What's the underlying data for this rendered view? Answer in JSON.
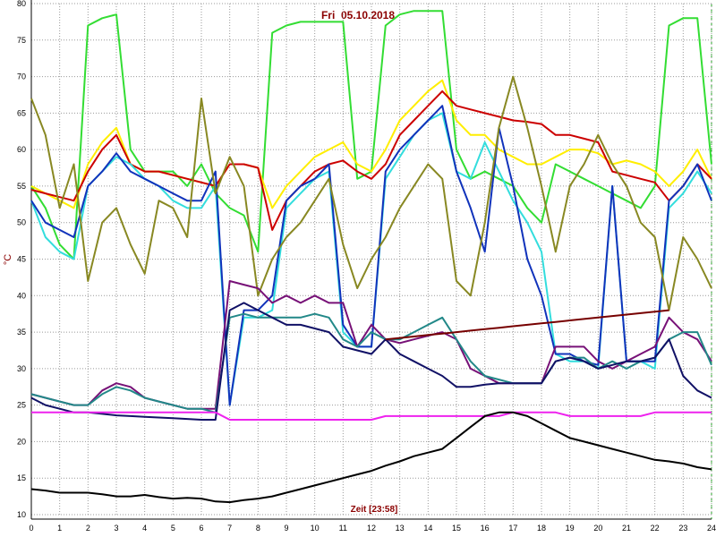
{
  "chart_data": {
    "type": "line",
    "title": "Fri  05.10.2018",
    "x_label": "Zeit [23:58]",
    "y_label": "°C",
    "x": [
      0,
      0.5,
      1,
      1.5,
      2,
      2.5,
      3,
      3.5,
      4,
      4.5,
      5,
      5.5,
      6,
      6.5,
      7,
      7.5,
      8,
      8.5,
      9,
      9.5,
      10,
      10.5,
      11,
      11.5,
      12,
      12.5,
      13,
      13.5,
      14,
      14.5,
      15,
      15.5,
      16,
      16.5,
      17,
      17.5,
      18,
      18.5,
      19,
      19.5,
      20,
      20.5,
      21,
      21.5,
      22,
      22.5,
      23,
      23.5,
      24
    ],
    "xlim": [
      0,
      24
    ],
    "xticks": [
      0,
      1,
      2,
      3,
      4,
      5,
      6,
      7,
      8,
      9,
      10,
      11,
      12,
      13,
      14,
      15,
      16,
      17,
      18,
      19,
      20,
      21,
      22,
      23,
      24
    ],
    "ylim": [
      10,
      80
    ],
    "yticks": [
      10,
      15,
      20,
      25,
      30,
      35,
      40,
      45,
      50,
      55,
      60,
      65,
      70,
      75,
      80
    ],
    "grid": true,
    "series": [
      {
        "color": "#33dd33",
        "values": [
          55,
          52,
          47,
          45,
          77,
          78,
          78.5,
          60,
          57,
          57,
          57,
          55,
          58,
          54,
          52,
          51,
          46,
          76,
          77,
          77.5,
          77.5,
          77.5,
          77.5,
          56,
          57,
          77,
          78.5,
          79,
          79,
          79,
          60,
          56,
          57,
          56,
          55,
          52,
          50,
          58,
          57,
          56,
          55,
          54,
          53,
          52,
          55,
          77,
          78,
          78,
          58
        ]
      },
      {
        "color": "#ffee00",
        "values": [
          55,
          54,
          53,
          52,
          58,
          61,
          63,
          58,
          57,
          57,
          56.5,
          56,
          55.5,
          55,
          58,
          58,
          57.5,
          52,
          55,
          57,
          59,
          60,
          61,
          58,
          57,
          60,
          64,
          66,
          68,
          69.5,
          64,
          62,
          62,
          60,
          59,
          58,
          58,
          59,
          60,
          60,
          59.5,
          58,
          58.5,
          58,
          57,
          55,
          57,
          60,
          56
        ]
      },
      {
        "color": "#cc0000",
        "values": [
          54.5,
          54,
          53.5,
          53,
          57,
          60,
          62,
          58,
          57,
          57,
          56.5,
          56,
          55.5,
          55,
          58,
          58,
          57.5,
          49,
          53,
          55,
          57,
          58,
          58.5,
          57,
          56,
          58,
          62,
          64,
          66,
          68,
          66,
          65.5,
          65,
          64.5,
          64,
          63.8,
          63.5,
          62,
          62,
          61.5,
          61,
          57,
          56.5,
          56,
          55.5,
          53,
          55,
          58,
          56
        ]
      },
      {
        "color": "#33dddd",
        "values": [
          53,
          48,
          46,
          45,
          55,
          57,
          59,
          58,
          56,
          55,
          53,
          52,
          52,
          55,
          25,
          37,
          37,
          38,
          52,
          54,
          56,
          57,
          35,
          33,
          33,
          56,
          59,
          62,
          64,
          65,
          57,
          56,
          61,
          57,
          53,
          50,
          46,
          32,
          31,
          31,
          30,
          55,
          31,
          31,
          30,
          52,
          54,
          57,
          54
        ]
      },
      {
        "color": "#1133bb",
        "values": [
          53,
          50,
          49,
          48,
          55,
          57,
          59.5,
          57,
          56,
          55,
          54,
          53,
          53,
          57,
          25,
          38,
          38,
          40,
          53,
          55,
          56,
          58,
          36,
          33,
          33,
          57,
          60,
          62,
          64,
          66,
          57,
          52,
          46,
          63,
          55,
          45,
          40,
          32,
          32,
          31,
          30.5,
          55,
          31,
          31,
          31,
          53,
          55,
          58,
          53
        ]
      },
      {
        "color": "#888822",
        "values": [
          67,
          62,
          52,
          58,
          42,
          50,
          52,
          47,
          43,
          53,
          52,
          48,
          67,
          54,
          59,
          55,
          40,
          45,
          48,
          50,
          53,
          56,
          47,
          41,
          45,
          48,
          52,
          55,
          58,
          56,
          42,
          40,
          50,
          63,
          70,
          63,
          55,
          46,
          55,
          58,
          62,
          58,
          55,
          50,
          48,
          38,
          48,
          45,
          41
        ]
      },
      {
        "color": "#771177",
        "values": [
          26.5,
          26,
          25.5,
          25,
          25,
          27,
          28,
          27.5,
          26,
          25.5,
          25,
          24.5,
          24.5,
          24.5,
          42,
          41.5,
          41,
          39,
          40,
          39,
          40,
          39,
          39,
          33,
          36,
          34,
          33.5,
          34,
          34.5,
          35,
          34,
          30,
          29,
          28,
          28,
          28,
          28,
          33,
          33,
          33,
          31,
          30,
          31,
          32,
          33,
          37,
          35,
          34,
          31
        ]
      },
      {
        "color": "#228888",
        "values": [
          26.5,
          26,
          25.5,
          25,
          25,
          26.5,
          27.5,
          27,
          26,
          25.5,
          25,
          24.5,
          24.5,
          24,
          37,
          37.5,
          37,
          37,
          37,
          37,
          37.5,
          37,
          34,
          33,
          35,
          34,
          34,
          35,
          36,
          37,
          34,
          31,
          29,
          28.5,
          28,
          28,
          28,
          31,
          31.5,
          31.5,
          30,
          31,
          30,
          31,
          31.5,
          34,
          35,
          35,
          30.5
        ]
      },
      {
        "color": "#111166",
        "values": [
          26,
          25,
          24.5,
          24,
          24,
          23.8,
          23.6,
          23.5,
          23.4,
          23.3,
          23.2,
          23.1,
          23,
          23,
          38,
          39,
          38,
          37,
          36,
          36,
          35.5,
          35,
          33,
          32.5,
          32,
          34,
          32,
          31,
          30,
          29,
          27.5,
          27.5,
          27.8,
          28,
          28,
          28,
          28,
          31,
          31.5,
          31,
          30,
          30.5,
          31,
          31,
          31.5,
          34,
          29,
          27,
          26
        ]
      },
      {
        "color": "#770000",
        "values": [
          null,
          null,
          null,
          null,
          null,
          null,
          null,
          null,
          null,
          null,
          null,
          null,
          null,
          null,
          null,
          null,
          null,
          null,
          null,
          null,
          null,
          null,
          null,
          null,
          null,
          34,
          34.2,
          34.4,
          34.6,
          34.8,
          35,
          35.2,
          35.4,
          35.6,
          35.8,
          36,
          36.2,
          36.4,
          36.6,
          36.8,
          37,
          37.2,
          37.4,
          37.6,
          37.8,
          38,
          null,
          null,
          null
        ]
      },
      {
        "color": "#ee22ee",
        "values": [
          24,
          24,
          24,
          24,
          24,
          24,
          24,
          24,
          24,
          24,
          24,
          24,
          24,
          24,
          23,
          23,
          23,
          23,
          23,
          23,
          23,
          23,
          23,
          23,
          23,
          23.5,
          23.5,
          23.5,
          23.5,
          23.5,
          23.5,
          23.5,
          23.5,
          23.5,
          24,
          24,
          24,
          24,
          23.5,
          23.5,
          23.5,
          23.5,
          23.5,
          23.5,
          24,
          24,
          24,
          24,
          24
        ]
      },
      {
        "color": "#000000",
        "values": [
          13.5,
          13.3,
          13,
          13,
          13,
          12.8,
          12.5,
          12.5,
          12.7,
          12.4,
          12.2,
          12.3,
          12.2,
          11.8,
          11.7,
          12,
          12.2,
          12.5,
          13,
          13.5,
          14,
          14.5,
          15,
          15.5,
          16,
          16.7,
          17.3,
          18,
          18.5,
          19,
          20.5,
          22,
          23.5,
          24,
          24,
          23.5,
          22.5,
          21.5,
          20.5,
          20,
          19.5,
          19,
          18.5,
          18,
          17.5,
          17.3,
          17,
          16.5,
          16.2
        ]
      }
    ]
  }
}
